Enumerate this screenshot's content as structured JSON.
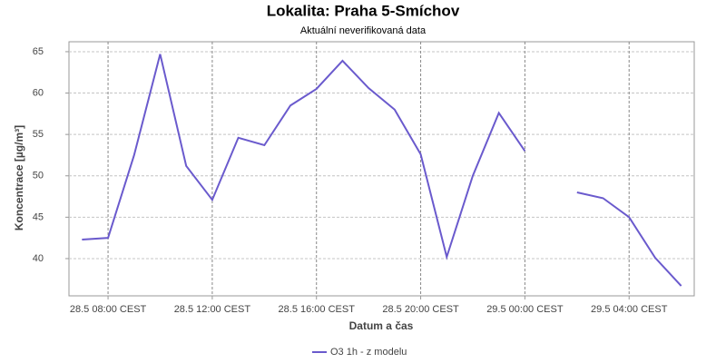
{
  "chart_data": {
    "type": "line",
    "title": "Lokalita: Praha 5-Smíchov",
    "subtitle": "Aktuální neverifikovaná data",
    "x_label": "Datum a čas",
    "y_label": "Koncentrace [µg/m³]",
    "categories": [
      null,
      "28.5 08:00 CEST",
      null,
      null,
      null,
      "28.5 12:00 CEST",
      null,
      null,
      null,
      "28.5 16:00 CEST",
      null,
      null,
      null,
      "28.5 20:00 CEST",
      null,
      null,
      null,
      "29.5 00:00 CEST",
      null,
      null,
      null,
      "29.5 04:00 CEST",
      null,
      null
    ],
    "series": [
      {
        "name": "O3 1h - z modelu",
        "color": "#6a5acd",
        "values": [
          42.3,
          42.5,
          52.5,
          64.7,
          51.2,
          47.1,
          54.6,
          53.7,
          58.5,
          60.5,
          63.9,
          60.6,
          58.0,
          52.6,
          40.2,
          50.0,
          57.6,
          53.0,
          null,
          48.0,
          47.3,
          45.0,
          40.1,
          36.7
        ]
      }
    ],
    "ylim": [
      35.5,
      66.2
    ],
    "yticks": [
      40,
      45,
      50,
      55,
      60,
      65
    ],
    "grid": true
  }
}
